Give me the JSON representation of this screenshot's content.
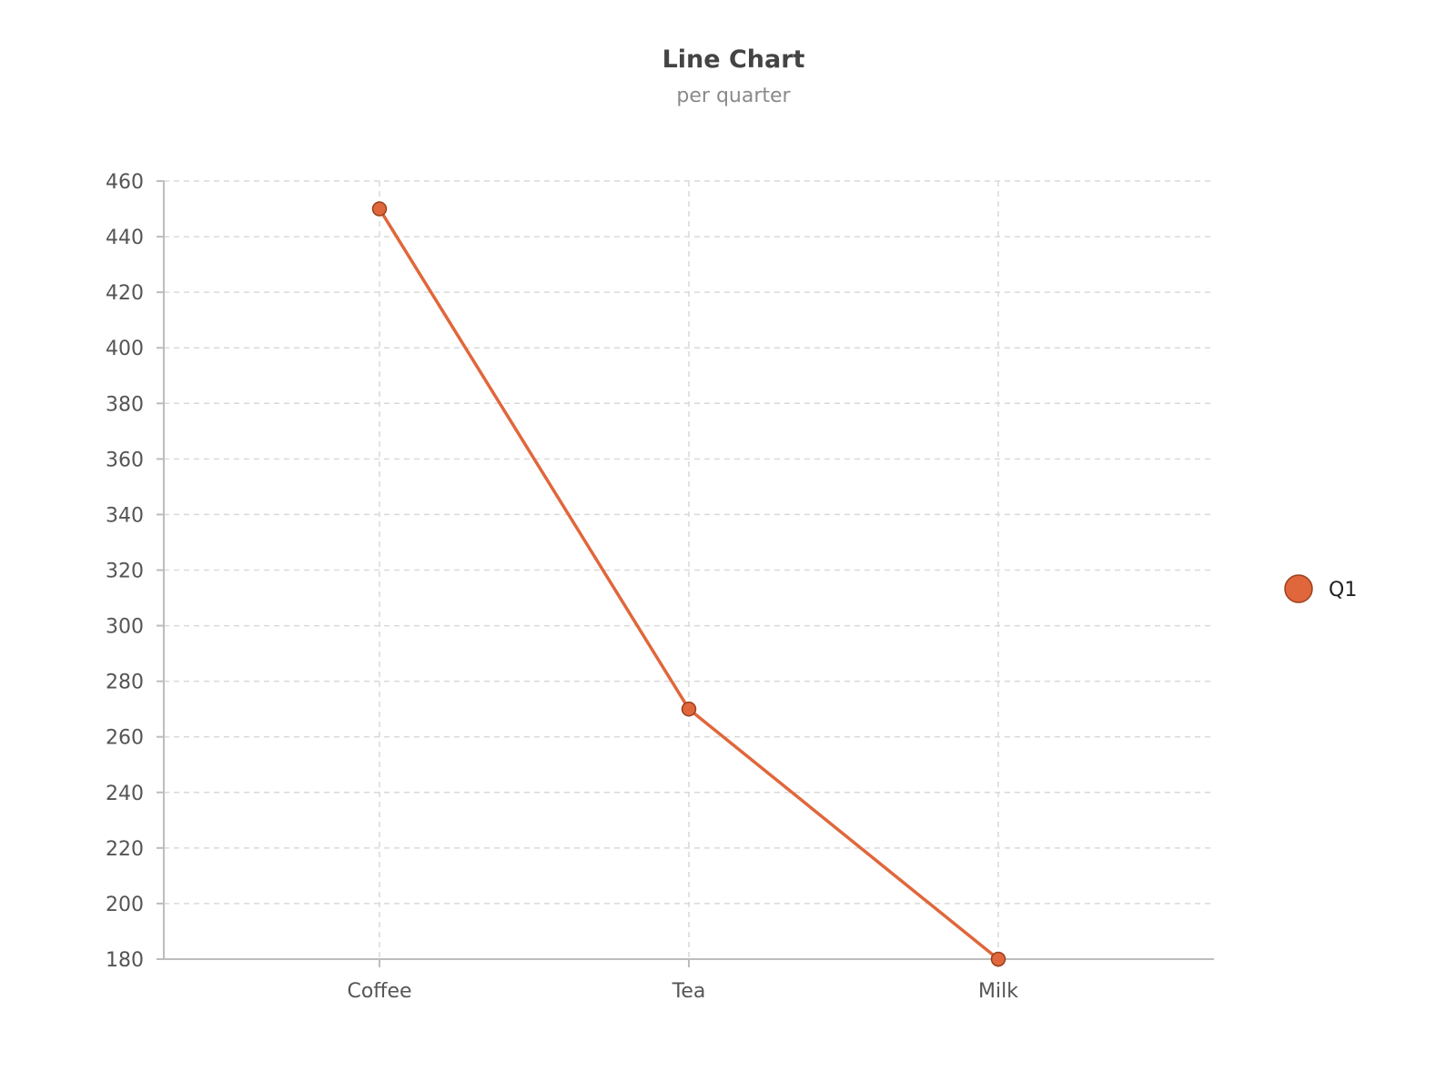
{
  "chart_data": {
    "type": "line",
    "title": "Line Chart",
    "subtitle": "per quarter",
    "categories": [
      "Coffee",
      "Tea",
      "Milk"
    ],
    "series": [
      {
        "name": "Q1",
        "values": [
          450,
          270,
          180
        ],
        "color": "#e0673b"
      }
    ],
    "ylim": [
      180,
      460
    ],
    "yticks": [
      180,
      200,
      220,
      240,
      260,
      280,
      300,
      320,
      340,
      360,
      380,
      400,
      420,
      440,
      460
    ],
    "grid": true,
    "legend_position": "right"
  }
}
